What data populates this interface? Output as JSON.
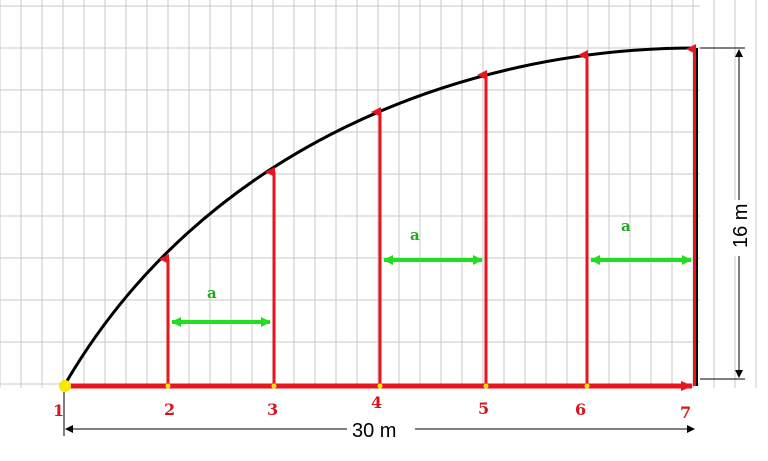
{
  "diagram": {
    "width_dim_label": "30 m",
    "height_dim_label": "16 m",
    "spacing_label": "a",
    "points": [
      "1",
      "2",
      "3",
      "4",
      "5",
      "6",
      "7"
    ],
    "spacing_marked_between": [
      [
        2,
        3
      ],
      [
        4,
        5
      ],
      [
        6,
        7
      ]
    ],
    "colors": {
      "grid": "#c8c8c8",
      "curve": "#000000",
      "verticals": "#e8141e",
      "base": "#e8141e",
      "spacing_arrows": "#22dd22",
      "point_labels": "#d4141e",
      "spacing_labels": "#22aa22",
      "point_marker": "#f7e800",
      "dimension_lines": "#000000"
    }
  }
}
